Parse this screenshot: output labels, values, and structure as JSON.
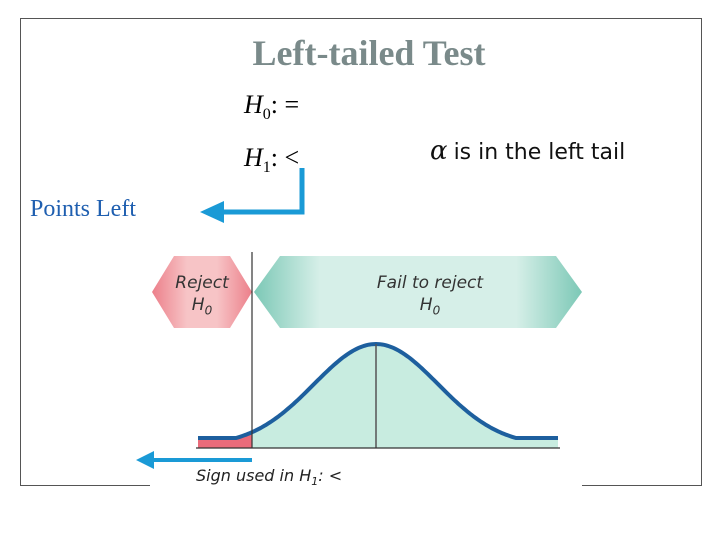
{
  "title": "Left-tailed Test",
  "hypotheses": {
    "h0_symbol": "H",
    "h0_sub": "0",
    "h0_rel": ": =",
    "h1_symbol": "H",
    "h1_sub": "1",
    "h1_rel": ": <"
  },
  "alpha_note": {
    "symbol": "α",
    "text": "is in the left tail"
  },
  "points_label": "Points Left",
  "regions": {
    "reject_line1": "Reject",
    "reject_line2": "H",
    "reject_sub": "0",
    "fail_line1": "Fail to reject",
    "fail_line2": "H",
    "fail_sub": "0"
  },
  "sign_caption": "Sign used in H",
  "sign_caption_sub": "1",
  "sign_caption_rel": ": <",
  "colors": {
    "title": "#7a8a8a",
    "points_text": "#1f5fb0",
    "arrow_blue": "#1a9ad6",
    "reject_fill": "#f0a0a8",
    "fail_fill": "#a9dccf",
    "curve": "#1d5f9e",
    "curve_fill": "#c8ece0",
    "tail_fill": "#ea6b7a"
  }
}
